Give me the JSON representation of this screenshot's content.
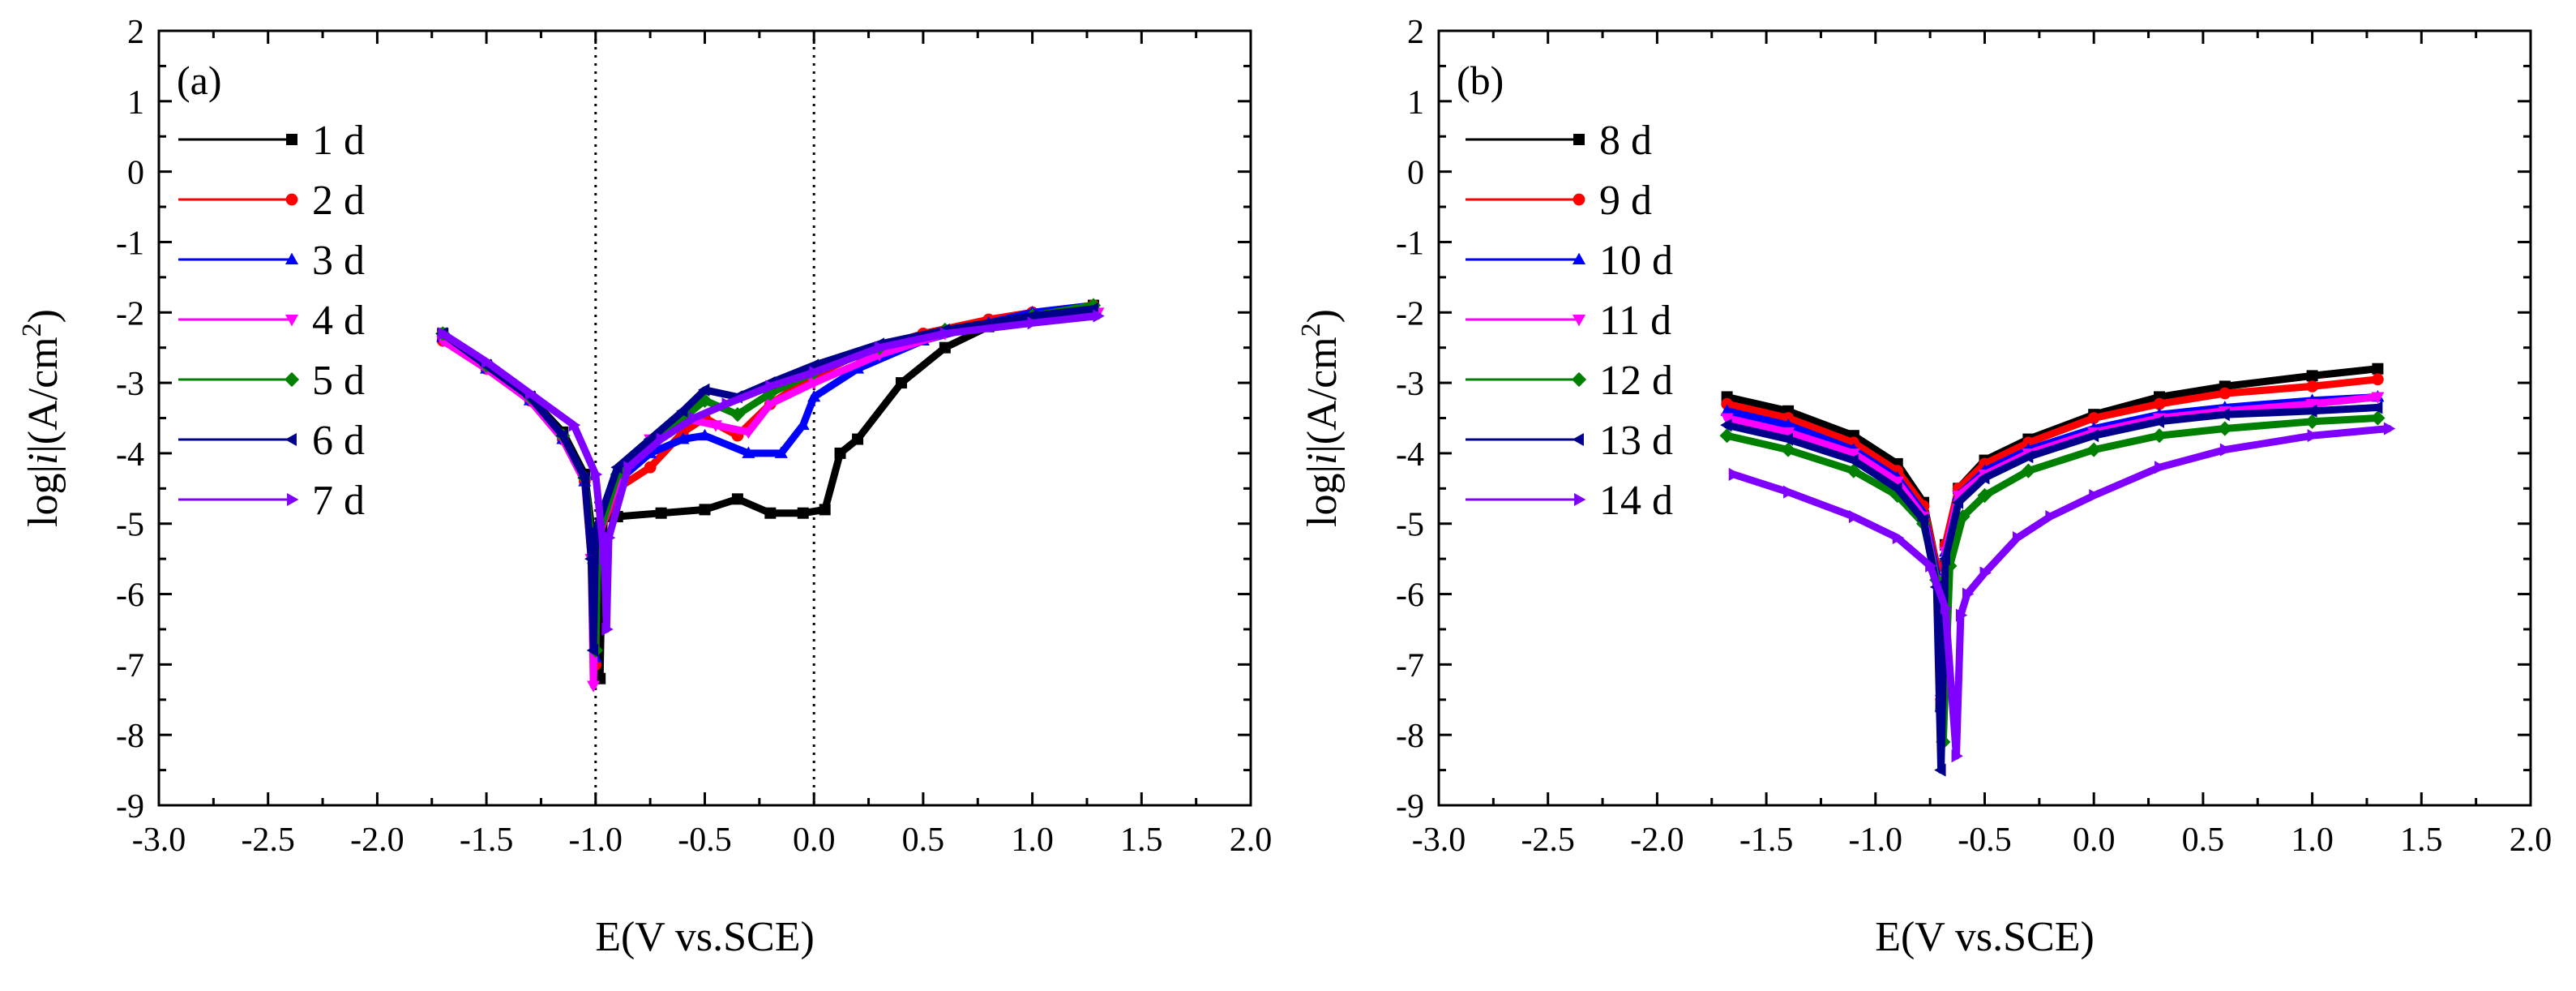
{
  "chart_data": [
    {
      "type": "line",
      "panel_label": "(a)",
      "xlabel": "E(V vs.SCE)",
      "ylabel": "log|i|(A/cm²)",
      "ylabel_prefix": "log|",
      "ylabel_italic": "i",
      "ylabel_suffix": "|(A/cm",
      "ylabel_sup": "2",
      "ylabel_close": ")",
      "xlim": [
        -3.0,
        2.0
      ],
      "ylim": [
        -9,
        2
      ],
      "xticks": [
        -3.0,
        -2.5,
        -2.0,
        -1.5,
        -1.0,
        -0.5,
        0.0,
        0.5,
        1.0,
        1.5,
        2.0
      ],
      "xtick_labels": [
        "-3.0",
        "-2.5",
        "-2.0",
        "-1.5",
        "-1.0",
        "-0.5",
        "0.0",
        "0.5",
        "1.0",
        "1.5",
        "2.0"
      ],
      "yticks": [
        2,
        1,
        0,
        -1,
        -2,
        -3,
        -4,
        -5,
        -6,
        -7,
        -8,
        -9
      ],
      "ytick_labels": [
        "2",
        "1",
        "0",
        "-1",
        "-2",
        "-3",
        "-4",
        "-5",
        "-6",
        "-7",
        "-8",
        "-9"
      ],
      "reference_lines_x": [
        -1.0,
        0.0
      ],
      "legend_position": "top-left",
      "series": [
        {
          "name": "1 d",
          "color": "#000000",
          "marker": "square",
          "x": [
            -1.7,
            -1.5,
            -1.3,
            -1.15,
            -1.05,
            -1.0,
            -0.98,
            -0.97,
            -0.96,
            -0.9,
            -0.7,
            -0.5,
            -0.35,
            -0.2,
            -0.05,
            0.05,
            0.12,
            0.2,
            0.4,
            0.6,
            0.8,
            1.0,
            1.28
          ],
          "y": [
            -2.3,
            -2.75,
            -3.2,
            -3.7,
            -4.3,
            -5.5,
            -7.2,
            -5.5,
            -4.9,
            -4.9,
            -4.85,
            -4.8,
            -4.65,
            -4.85,
            -4.85,
            -4.8,
            -4.0,
            -3.8,
            -3.0,
            -2.5,
            -2.2,
            -2.05,
            -1.9
          ]
        },
        {
          "name": "2 d",
          "color": "#ff0000",
          "marker": "circle",
          "x": [
            -1.7,
            -1.5,
            -1.3,
            -1.15,
            -1.05,
            -1.01,
            -1.0,
            -0.99,
            -0.9,
            -0.75,
            -0.6,
            -0.5,
            -0.35,
            -0.2,
            0.0,
            0.2,
            0.5,
            0.8,
            1.0,
            1.28
          ],
          "y": [
            -2.4,
            -2.8,
            -3.25,
            -3.8,
            -4.4,
            -5.5,
            -7.0,
            -5.2,
            -4.5,
            -4.2,
            -3.7,
            -3.5,
            -3.75,
            -3.3,
            -2.9,
            -2.6,
            -2.3,
            -2.1,
            -2.0,
            -1.9
          ]
        },
        {
          "name": "3 d",
          "color": "#0000ff",
          "marker": "triangle-up",
          "x": [
            -1.7,
            -1.5,
            -1.3,
            -1.15,
            -1.05,
            -1.01,
            -1.0,
            -0.99,
            -0.9,
            -0.75,
            -0.6,
            -0.5,
            -0.3,
            -0.15,
            -0.05,
            0.0,
            0.2,
            0.5,
            0.8,
            1.0,
            1.28
          ],
          "y": [
            -2.35,
            -2.8,
            -3.25,
            -3.8,
            -4.4,
            -5.5,
            -6.9,
            -5.2,
            -4.4,
            -4.0,
            -3.8,
            -3.75,
            -4.0,
            -4.0,
            -3.6,
            -3.2,
            -2.8,
            -2.4,
            -2.15,
            -2.0,
            -1.9
          ]
        },
        {
          "name": "4 d",
          "color": "#ff00ff",
          "marker": "triangle-down",
          "x": [
            -1.7,
            -1.5,
            -1.3,
            -1.15,
            -1.05,
            -1.02,
            -1.01,
            -1.0,
            -0.9,
            -0.75,
            -0.6,
            -0.45,
            -0.3,
            -0.2,
            0.0,
            0.3,
            0.6,
            1.0,
            1.3
          ],
          "y": [
            -2.4,
            -2.8,
            -3.25,
            -3.8,
            -4.4,
            -5.5,
            -7.3,
            -5.3,
            -4.4,
            -3.8,
            -3.5,
            -3.6,
            -3.7,
            -3.3,
            -3.0,
            -2.6,
            -2.3,
            -2.1,
            -2.0
          ]
        },
        {
          "name": "5 d",
          "color": "#008000",
          "marker": "diamond",
          "x": [
            -1.7,
            -1.5,
            -1.3,
            -1.15,
            -1.05,
            -1.01,
            -1.0,
            -0.99,
            -0.9,
            -0.75,
            -0.6,
            -0.5,
            -0.35,
            -0.2,
            0.0,
            0.3,
            0.6,
            1.0,
            1.28
          ],
          "y": [
            -2.3,
            -2.75,
            -3.2,
            -3.75,
            -4.35,
            -5.5,
            -6.8,
            -5.2,
            -4.3,
            -3.9,
            -3.5,
            -3.25,
            -3.45,
            -3.15,
            -2.85,
            -2.5,
            -2.25,
            -2.05,
            -1.9
          ]
        },
        {
          "name": "6 d",
          "color": "#00008b",
          "marker": "triangle-left",
          "x": [
            -1.7,
            -1.5,
            -1.3,
            -1.15,
            -1.05,
            -1.02,
            -1.01,
            -1.0,
            -0.9,
            -0.75,
            -0.6,
            -0.5,
            -0.35,
            -0.2,
            0.0,
            0.3,
            0.6,
            1.0,
            1.28
          ],
          "y": [
            -2.3,
            -2.75,
            -3.2,
            -3.75,
            -4.35,
            -5.5,
            -6.8,
            -5.1,
            -4.2,
            -3.8,
            -3.4,
            -3.1,
            -3.2,
            -3.0,
            -2.75,
            -2.45,
            -2.25,
            -2.05,
            -1.95
          ]
        },
        {
          "name": "7 d",
          "color": "#8000ff",
          "marker": "triangle-right",
          "x": [
            -1.7,
            -1.5,
            -1.3,
            -1.1,
            -1.0,
            -0.96,
            -0.95,
            -0.94,
            -0.85,
            -0.7,
            -0.55,
            -0.4,
            -0.2,
            0.0,
            0.3,
            0.6,
            1.0,
            1.3
          ],
          "y": [
            -2.3,
            -2.7,
            -3.15,
            -3.6,
            -4.3,
            -5.5,
            -6.5,
            -5.2,
            -4.2,
            -3.8,
            -3.5,
            -3.3,
            -3.05,
            -2.85,
            -2.5,
            -2.3,
            -2.15,
            -2.05
          ]
        }
      ]
    },
    {
      "type": "line",
      "panel_label": "(b)",
      "xlabel": "E(V vs.SCE)",
      "ylabel": "log|i|(A/cm²)",
      "ylabel_prefix": "log|",
      "ylabel_italic": "i",
      "ylabel_suffix": "|(A/cm",
      "ylabel_sup": "2",
      "ylabel_close": ")",
      "xlim": [
        -3.0,
        2.0
      ],
      "ylim": [
        -9,
        2
      ],
      "xticks": [
        -3.0,
        -2.5,
        -2.0,
        -1.5,
        -1.0,
        -0.5,
        0.0,
        0.5,
        1.0,
        1.5,
        2.0
      ],
      "xtick_labels": [
        "-3.0",
        "-2.5",
        "-2.0",
        "-1.5",
        "-1.0",
        "-0.5",
        "0.0",
        "0.5",
        "1.0",
        "1.5",
        "2.0"
      ],
      "yticks": [
        2,
        1,
        0,
        -1,
        -2,
        -3,
        -4,
        -5,
        -6,
        -7,
        -8,
        -9
      ],
      "ytick_labels": [
        "2",
        "1",
        "0",
        "-1",
        "-2",
        "-3",
        "-4",
        "-5",
        "-6",
        "-7",
        "-8",
        "-9"
      ],
      "reference_lines_x": [],
      "legend_position": "top-left",
      "series": [
        {
          "name": "8 d",
          "color": "#000000",
          "marker": "square",
          "x": [
            -1.68,
            -1.4,
            -1.1,
            -0.9,
            -0.78,
            -0.72,
            -0.7,
            -0.68,
            -0.62,
            -0.5,
            -0.3,
            0.0,
            0.3,
            0.6,
            1.0,
            1.3
          ],
          "y": [
            -3.2,
            -3.4,
            -3.75,
            -4.15,
            -4.7,
            -5.6,
            -7.6,
            -5.3,
            -4.5,
            -4.1,
            -3.8,
            -3.45,
            -3.2,
            -3.05,
            -2.9,
            -2.8
          ]
        },
        {
          "name": "9 d",
          "color": "#ff0000",
          "marker": "circle",
          "x": [
            -1.68,
            -1.4,
            -1.1,
            -0.9,
            -0.78,
            -0.72,
            -0.7,
            -0.68,
            -0.62,
            -0.5,
            -0.3,
            0.0,
            0.3,
            0.6,
            1.0,
            1.3
          ],
          "y": [
            -3.3,
            -3.5,
            -3.85,
            -4.25,
            -4.75,
            -5.6,
            -7.5,
            -5.3,
            -4.5,
            -4.15,
            -3.85,
            -3.5,
            -3.3,
            -3.15,
            -3.05,
            -2.95
          ]
        },
        {
          "name": "10 d",
          "color": "#0000ff",
          "marker": "triangle-up",
          "x": [
            -1.68,
            -1.4,
            -1.1,
            -0.9,
            -0.78,
            -0.72,
            -0.7,
            -0.68,
            -0.62,
            -0.5,
            -0.3,
            0.0,
            0.3,
            0.6,
            1.0,
            1.3
          ],
          "y": [
            -3.4,
            -3.6,
            -3.95,
            -4.35,
            -4.85,
            -5.7,
            -7.6,
            -5.4,
            -4.6,
            -4.25,
            -3.95,
            -3.65,
            -3.45,
            -3.35,
            -3.25,
            -3.2
          ]
        },
        {
          "name": "11 d",
          "color": "#ff00ff",
          "marker": "triangle-down",
          "x": [
            -1.68,
            -1.4,
            -1.1,
            -0.9,
            -0.78,
            -0.72,
            -0.7,
            -0.68,
            -0.62,
            -0.5,
            -0.3,
            0.0,
            0.3,
            0.6,
            1.0,
            1.3
          ],
          "y": [
            -3.5,
            -3.7,
            -4.0,
            -4.4,
            -4.9,
            -5.8,
            -7.5,
            -5.4,
            -4.6,
            -4.3,
            -4.0,
            -3.7,
            -3.5,
            -3.4,
            -3.3,
            -3.2
          ]
        },
        {
          "name": "12 d",
          "color": "#008000",
          "marker": "diamond",
          "x": [
            -1.68,
            -1.4,
            -1.1,
            -0.9,
            -0.78,
            -0.72,
            -0.69,
            -0.66,
            -0.6,
            -0.5,
            -0.3,
            0.0,
            0.3,
            0.6,
            1.0,
            1.3
          ],
          "y": [
            -3.75,
            -3.95,
            -4.25,
            -4.6,
            -5.0,
            -5.8,
            -8.1,
            -5.6,
            -4.9,
            -4.6,
            -4.25,
            -3.95,
            -3.75,
            -3.65,
            -3.55,
            -3.5
          ]
        },
        {
          "name": "13 d",
          "color": "#00008b",
          "marker": "triangle-left",
          "x": [
            -1.68,
            -1.4,
            -1.1,
            -0.9,
            -0.78,
            -0.72,
            -0.7,
            -0.68,
            -0.62,
            -0.5,
            -0.3,
            0.0,
            0.3,
            0.6,
            1.0,
            1.3
          ],
          "y": [
            -3.6,
            -3.8,
            -4.1,
            -4.5,
            -4.95,
            -5.9,
            -8.5,
            -5.5,
            -4.7,
            -4.35,
            -4.05,
            -3.75,
            -3.55,
            -3.45,
            -3.4,
            -3.35
          ]
        },
        {
          "name": "14 d",
          "color": "#8000ff",
          "marker": "triangle-right",
          "x": [
            -1.65,
            -1.4,
            -1.1,
            -0.9,
            -0.75,
            -0.68,
            -0.63,
            -0.61,
            -0.58,
            -0.5,
            -0.35,
            -0.2,
            0.0,
            0.3,
            0.6,
            1.0,
            1.35
          ],
          "y": [
            -4.3,
            -4.55,
            -4.9,
            -5.2,
            -5.6,
            -6.2,
            -8.3,
            -6.3,
            -6.0,
            -5.7,
            -5.2,
            -4.9,
            -4.6,
            -4.2,
            -3.95,
            -3.75,
            -3.65
          ]
        }
      ]
    }
  ]
}
